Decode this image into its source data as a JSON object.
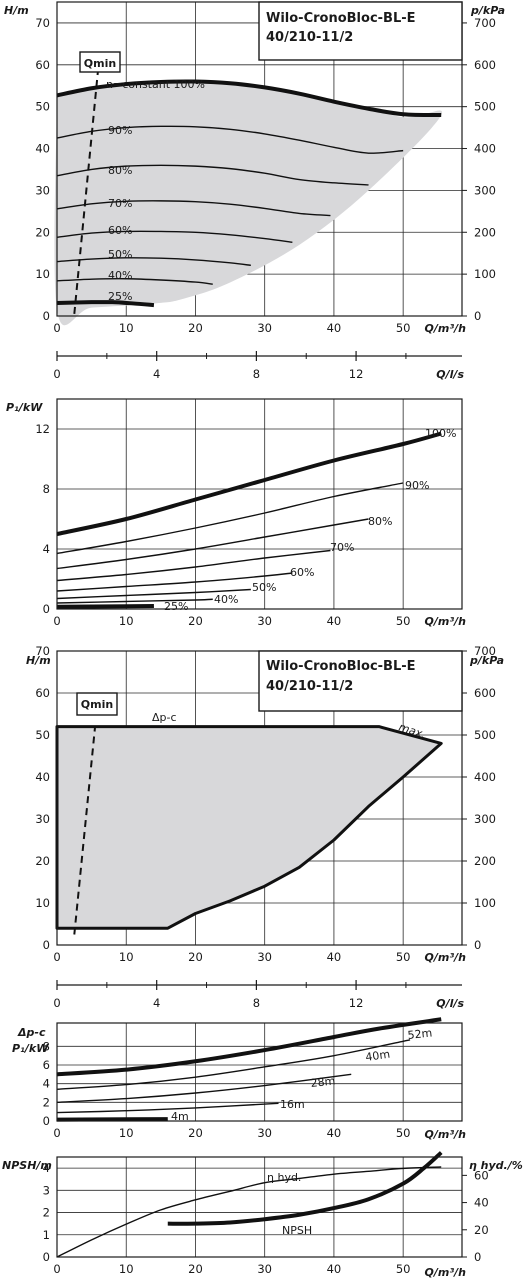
{
  "chart_data": [
    {
      "id": "head-constant",
      "type": "line",
      "title": "Wilo-CronoBloc-BL-E",
      "subtitle": "40/210-11/2",
      "ylabel": "H/m",
      "y2label": "p/kPa",
      "xlabel": "Q/m³/h",
      "xlim": [
        0,
        55
      ],
      "ylim": [
        0,
        70
      ],
      "x_ticks": [
        0,
        10,
        20,
        30,
        40,
        50
      ],
      "y_ticks": [
        0,
        10,
        20,
        30,
        40,
        50,
        60,
        70
      ],
      "y2_ticks": [
        0,
        100,
        200,
        300,
        400,
        500,
        600,
        700
      ],
      "qmin_label": "Qmin",
      "qmin_line": [
        [
          2.5,
          0.5
        ],
        [
          6,
          60
        ]
      ],
      "shaded_region": [
        [
          0,
          53
        ],
        [
          10,
          55
        ],
        [
          20,
          55.8
        ],
        [
          30,
          54.5
        ],
        [
          40,
          51.5
        ],
        [
          50,
          47.5
        ],
        [
          55.5,
          48
        ],
        [
          45,
          30
        ],
        [
          35,
          17
        ],
        [
          25,
          8
        ],
        [
          18,
          4
        ],
        [
          14,
          3
        ],
        [
          5,
          2
        ],
        [
          0,
          1.5
        ]
      ],
      "series": [
        {
          "name": "n=constant 100%",
          "bold": true,
          "points": [
            [
              0,
              52.7
            ],
            [
              5,
              54.4
            ],
            [
              10,
              55.4
            ],
            [
              15,
              55.9
            ],
            [
              20,
              56
            ],
            [
              25,
              55.6
            ],
            [
              30,
              54.6
            ],
            [
              35,
              53.1
            ],
            [
              40,
              51.2
            ],
            [
              45,
              49.5
            ],
            [
              50,
              48.2
            ],
            [
              55.5,
              48
            ]
          ]
        },
        {
          "name": "90%",
          "points": [
            [
              0,
              42.5
            ],
            [
              5,
              44.1
            ],
            [
              10,
              45
            ],
            [
              15,
              45.3
            ],
            [
              20,
              45.2
            ],
            [
              25,
              44.6
            ],
            [
              30,
              43.5
            ],
            [
              35,
              42
            ],
            [
              40,
              40.3
            ],
            [
              45,
              38.9
            ],
            [
              50,
              39.5
            ]
          ]
        },
        {
          "name": "80%",
          "points": [
            [
              0,
              33.5
            ],
            [
              5,
              35
            ],
            [
              10,
              35.8
            ],
            [
              15,
              36
            ],
            [
              20,
              35.8
            ],
            [
              25,
              35.2
            ],
            [
              30,
              34.1
            ],
            [
              35,
              32.6
            ],
            [
              40,
              31.8
            ],
            [
              45,
              31.3
            ]
          ]
        },
        {
          "name": "70%",
          "points": [
            [
              0,
              25.6
            ],
            [
              5,
              26.8
            ],
            [
              10,
              27.4
            ],
            [
              15,
              27.5
            ],
            [
              20,
              27.3
            ],
            [
              25,
              26.7
            ],
            [
              30,
              25.7
            ],
            [
              35,
              24.5
            ],
            [
              39.5,
              24
            ]
          ]
        },
        {
          "name": "60%",
          "points": [
            [
              0,
              18.8
            ],
            [
              5,
              19.8
            ],
            [
              10,
              20.2
            ],
            [
              15,
              20.2
            ],
            [
              20,
              20
            ],
            [
              25,
              19.4
            ],
            [
              30,
              18.5
            ],
            [
              34,
              17.6
            ]
          ]
        },
        {
          "name": "50%",
          "points": [
            [
              0,
              13
            ],
            [
              5,
              13.6
            ],
            [
              10,
              13.9
            ],
            [
              15,
              13.8
            ],
            [
              20,
              13.4
            ],
            [
              25,
              12.7
            ],
            [
              28,
              12.1
            ]
          ]
        },
        {
          "name": "40%",
          "points": [
            [
              0,
              8.4
            ],
            [
              5,
              8.8
            ],
            [
              10,
              8.9
            ],
            [
              15,
              8.6
            ],
            [
              20,
              8.1
            ],
            [
              22.5,
              7.6
            ]
          ]
        },
        {
          "name": "25%",
          "bold": true,
          "points": [
            [
              0,
              3.1
            ],
            [
              5,
              3.3
            ],
            [
              8,
              3.3
            ],
            [
              11,
              3
            ],
            [
              14,
              2.6
            ]
          ]
        }
      ]
    },
    {
      "id": "flow-scale-1",
      "type": "scale",
      "xlabel": "Q/l/s",
      "x_ticks": [
        0,
        4,
        8,
        12
      ],
      "xlim": [
        0,
        16
      ]
    },
    {
      "id": "power",
      "type": "line",
      "ylabel": "P₁/kW",
      "xlabel": "Q/m³/h",
      "xlim": [
        0,
        55
      ],
      "ylim": [
        0,
        14
      ],
      "x_ticks": [
        0,
        10,
        20,
        30,
        40,
        50
      ],
      "y_ticks": [
        0,
        4,
        8,
        12
      ],
      "series": [
        {
          "name": "100%",
          "bold": true,
          "points": [
            [
              0,
              5
            ],
            [
              10,
              6
            ],
            [
              20,
              7.3
            ],
            [
              30,
              8.6
            ],
            [
              40,
              9.9
            ],
            [
              50,
              11
            ],
            [
              55.5,
              11.7
            ]
          ]
        },
        {
          "name": "90%",
          "points": [
            [
              0,
              3.7
            ],
            [
              10,
              4.5
            ],
            [
              20,
              5.4
            ],
            [
              30,
              6.4
            ],
            [
              40,
              7.5
            ],
            [
              50,
              8.4
            ]
          ]
        },
        {
          "name": "80%",
          "points": [
            [
              0,
              2.7
            ],
            [
              10,
              3.3
            ],
            [
              20,
              4
            ],
            [
              30,
              4.8
            ],
            [
              40,
              5.6
            ],
            [
              45,
              6
            ]
          ]
        },
        {
          "name": "70%",
          "points": [
            [
              0,
              1.9
            ],
            [
              10,
              2.3
            ],
            [
              20,
              2.8
            ],
            [
              30,
              3.4
            ],
            [
              39.5,
              3.9
            ]
          ]
        },
        {
          "name": "60%",
          "points": [
            [
              0,
              1.2
            ],
            [
              10,
              1.5
            ],
            [
              20,
              1.8
            ],
            [
              30,
              2.2
            ],
            [
              34,
              2.4
            ]
          ]
        },
        {
          "name": "50%",
          "points": [
            [
              0,
              0.7
            ],
            [
              10,
              0.9
            ],
            [
              20,
              1.1
            ],
            [
              28,
              1.3
            ]
          ]
        },
        {
          "name": "40%",
          "points": [
            [
              0,
              0.4
            ],
            [
              10,
              0.5
            ],
            [
              20,
              0.6
            ],
            [
              22.5,
              0.65
            ]
          ]
        },
        {
          "name": "25%",
          "bold": true,
          "points": [
            [
              0,
              0.15
            ],
            [
              14,
              0.2
            ]
          ]
        }
      ]
    },
    {
      "id": "head-dpc",
      "type": "area",
      "title": "Wilo-CronoBloc-BL-E",
      "subtitle": "40/210-11/2",
      "ylabel": "H/m",
      "y2label": "p/kPa",
      "xlabel": "Q/m³/h",
      "xlim": [
        0,
        55
      ],
      "ylim": [
        0,
        70
      ],
      "x_ticks": [
        0,
        10,
        20,
        30,
        40,
        50
      ],
      "y_ticks": [
        0,
        10,
        20,
        30,
        40,
        50,
        60,
        70
      ],
      "y2_ticks": [
        0,
        100,
        200,
        300,
        400,
        500,
        600,
        700
      ],
      "qmin_label": "Qmin",
      "qmin_line": [
        [
          2.5,
          2.5
        ],
        [
          5.5,
          52
        ]
      ],
      "dpc_label": "Δp-c",
      "max_label": "max.",
      "region": [
        [
          0,
          52
        ],
        [
          46.5,
          52
        ],
        [
          55.5,
          48
        ],
        [
          50,
          40
        ],
        [
          45,
          33
        ],
        [
          40,
          25
        ],
        [
          35,
          18.5
        ],
        [
          30,
          14
        ],
        [
          25,
          10.5
        ],
        [
          20,
          7.5
        ],
        [
          16,
          4
        ],
        [
          0,
          4
        ]
      ]
    },
    {
      "id": "flow-scale-2",
      "type": "scale",
      "xlabel": "Q/l/s",
      "x_ticks": [
        0,
        4,
        8,
        12
      ],
      "xlim": [
        0,
        16
      ]
    },
    {
      "id": "power-dpc",
      "type": "line",
      "ylabel_top": "Δp-c",
      "ylabel": "P₁/kW",
      "xlabel": "Q/m³/h",
      "xlim": [
        0,
        55
      ],
      "ylim": [
        0,
        10
      ],
      "x_ticks": [
        0,
        10,
        20,
        30,
        40,
        50
      ],
      "y_ticks": [
        0,
        2,
        4,
        6,
        8
      ],
      "series": [
        {
          "name": "52m",
          "bold": true,
          "points": [
            [
              0,
              5
            ],
            [
              10,
              5.5
            ],
            [
              20,
              6.4
            ],
            [
              30,
              7.6
            ],
            [
              40,
              9
            ],
            [
              46.5,
              9.9
            ],
            [
              55.5,
              10.9
            ]
          ]
        },
        {
          "name": "40m",
          "points": [
            [
              0,
              3.4
            ],
            [
              10,
              3.9
            ],
            [
              20,
              4.7
            ],
            [
              30,
              5.8
            ],
            [
              40,
              7
            ],
            [
              51,
              8.7
            ]
          ]
        },
        {
          "name": "28m",
          "points": [
            [
              0,
              2
            ],
            [
              10,
              2.4
            ],
            [
              20,
              3
            ],
            [
              30,
              3.8
            ],
            [
              42.5,
              5
            ]
          ]
        },
        {
          "name": "16m",
          "points": [
            [
              0,
              0.9
            ],
            [
              10,
              1.1
            ],
            [
              20,
              1.4
            ],
            [
              32,
              1.9
            ]
          ]
        },
        {
          "name": "4m",
          "bold": true,
          "points": [
            [
              0,
              0.15
            ],
            [
              16,
              0.2
            ]
          ]
        }
      ]
    },
    {
      "id": "npsh-eff",
      "type": "line",
      "ylabel": "NPSH/m",
      "y2label": "η hyd./%",
      "xlabel": "Q/m³/h",
      "xlim": [
        0,
        55
      ],
      "ylim": [
        0,
        4.5
      ],
      "x_ticks": [
        0,
        10,
        20,
        30,
        40,
        50
      ],
      "y_ticks": [
        0,
        1,
        2,
        3,
        4
      ],
      "y2_ticks": [
        0,
        20,
        40,
        60
      ],
      "series": [
        {
          "name": "η hyd.",
          "axis": "right",
          "points": [
            [
              0,
              0
            ],
            [
              5,
              12
            ],
            [
              10,
              23
            ],
            [
              15,
              33
            ],
            [
              20,
              40
            ],
            [
              25,
              46
            ],
            [
              30,
              52
            ],
            [
              35,
              55
            ],
            [
              40,
              58
            ],
            [
              45,
              60
            ],
            [
              50,
              62
            ],
            [
              55.5,
              63
            ]
          ]
        },
        {
          "name": "NPSH",
          "bold": true,
          "axis": "left",
          "points": [
            [
              16,
              1.5
            ],
            [
              20,
              1.5
            ],
            [
              25,
              1.55
            ],
            [
              30,
              1.7
            ],
            [
              35,
              1.9
            ],
            [
              40,
              2.2
            ],
            [
              45,
              2.6
            ],
            [
              50,
              3.3
            ],
            [
              53,
              4
            ],
            [
              55.5,
              4.7
            ]
          ]
        }
      ]
    }
  ]
}
